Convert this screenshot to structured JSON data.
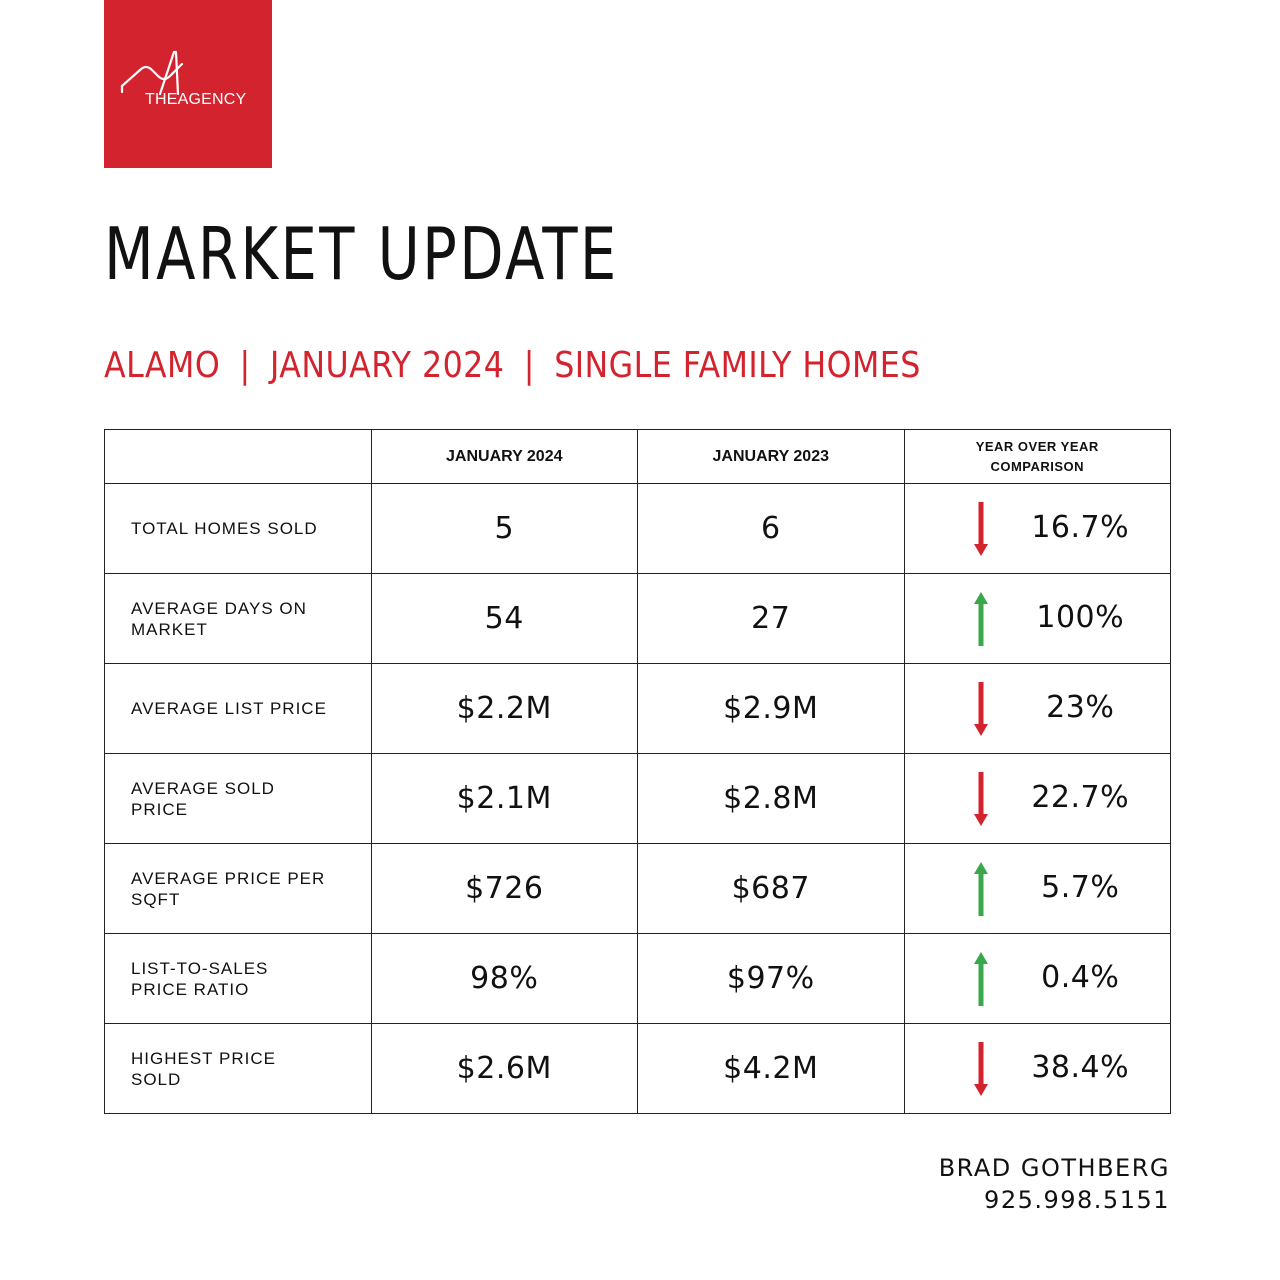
{
  "brand": {
    "name": "THEAGENCY",
    "color": "#d3232e"
  },
  "title": "MARKET UPDATE",
  "subtitle": {
    "location": "ALAMO",
    "period": "JANUARY 2024",
    "segment": "SINGLE FAMILY HOMES",
    "separator": "|"
  },
  "table": {
    "headers": {
      "metric": "",
      "current": "JANUARY 2024",
      "previous": "JANUARY 2023",
      "comparison": "YEAR OVER YEAR COMPARISON"
    },
    "rows": [
      {
        "metric": "TOTAL HOMES SOLD",
        "current": "5",
        "previous": "6",
        "change": "16.7%",
        "direction": "down"
      },
      {
        "metric": "AVERAGE DAYS ON MARKET",
        "current": "54",
        "previous": "27",
        "change": "100%",
        "direction": "up"
      },
      {
        "metric": "AVERAGE LIST PRICE",
        "current": "$2.2M",
        "previous": "$2.9M",
        "change": "23%",
        "direction": "down"
      },
      {
        "metric": "AVERAGE SOLD PRICE",
        "current": "$2.1M",
        "previous": "$2.8M",
        "change": "22.7%",
        "direction": "down"
      },
      {
        "metric": "AVERAGE PRICE PER SQFT",
        "current": "$726",
        "previous": "$687",
        "change": "5.7%",
        "direction": "up"
      },
      {
        "metric": "LIST-TO-SALES PRICE RATIO",
        "current": "98%",
        "previous": "$97%",
        "change": "0.4%",
        "direction": "up"
      },
      {
        "metric": "HIGHEST PRICE SOLD",
        "current": "$2.6M",
        "previous": "$4.2M",
        "change": "38.4%",
        "direction": "down"
      }
    ],
    "colors": {
      "up": "#3aa84a",
      "down": "#d3232e"
    },
    "icons": {
      "up": "arrow-up-icon",
      "down": "arrow-down-icon"
    }
  },
  "agent": {
    "name": "BRAD GOTHBERG",
    "phone": "925.998.5151"
  }
}
